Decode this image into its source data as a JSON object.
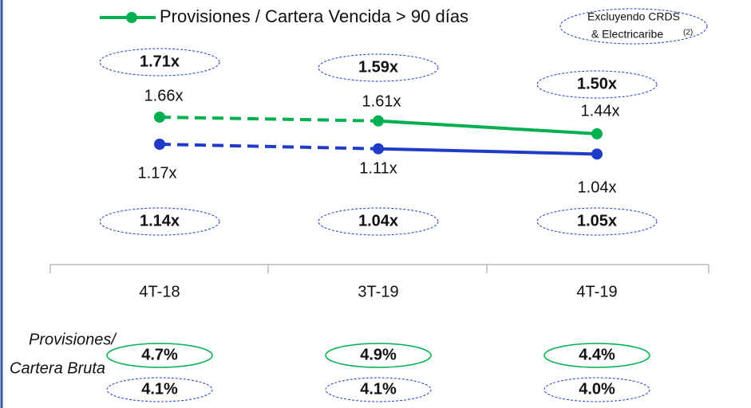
{
  "chart_data": {
    "type": "line",
    "categories": [
      "4T-18",
      "3T-19",
      "4T-19"
    ],
    "series": [
      {
        "name": "Provisiones / Cartera Vencida > 90 días",
        "color": "#00b050",
        "values": [
          1.66,
          1.61,
          1.44
        ],
        "value_labels": [
          "1.66x",
          "1.61x",
          "1.44x"
        ]
      },
      {
        "color": "#1f3cc8",
        "values": [
          1.17,
          1.11,
          1.04
        ],
        "value_labels": [
          "1.17x",
          "1.11x",
          "1.04x"
        ]
      }
    ],
    "note": [
      "Excluyendo CRDS",
      "& Electricaribe"
    ],
    "note_ref": "(2)",
    "excluding": [
      {
        "values": [
          1.71,
          1.59,
          1.5
        ],
        "value_labels": [
          "1.71x",
          "1.59x",
          "1.50x"
        ]
      },
      {
        "values": [
          1.14,
          1.04,
          1.05
        ],
        "value_labels": [
          "1.14x",
          "1.04x",
          "1.05x"
        ]
      }
    ],
    "ratio_label": [
      "Provisiones/",
      "Cartera Bruta"
    ],
    "ratio_series": [
      {
        "color": "#00b050",
        "values": [
          4.7,
          4.9,
          4.4
        ],
        "value_labels": [
          "4.7%",
          "4.9%",
          "4.4%"
        ]
      },
      {
        "color": "#1f3cc8",
        "values": [
          4.1,
          4.1,
          4.0
        ],
        "value_labels": [
          "4.1%",
          "4.1%",
          "4.0%"
        ]
      }
    ]
  }
}
